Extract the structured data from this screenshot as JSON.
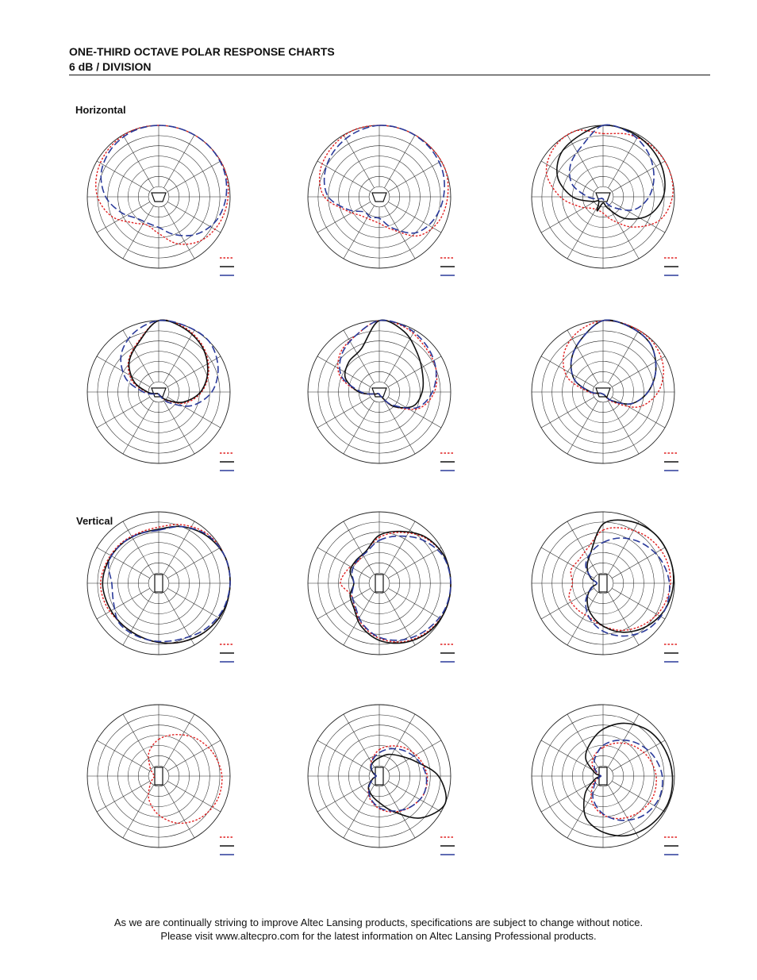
{
  "header": {
    "title": "ONE-THIRD OCTAVE POLAR RESPONSE CHARTS",
    "subtitle": "6 dB / DIVISION"
  },
  "sections": {
    "horizontal": "Horizontal",
    "vertical": "Vertical"
  },
  "legend_colors": {
    "red": "#e02020",
    "black": "#111111",
    "blue": "#2a3a9a"
  },
  "chart_data": [
    {
      "type": "polar",
      "plane": "horizontal",
      "icon": "horn-icon",
      "red": [
        7,
        7,
        7,
        7,
        6.8,
        6.5,
        6,
        5,
        3.6,
        3,
        3.6,
        5,
        6,
        6.5,
        6.8,
        7,
        7
      ],
      "black": [],
      "blue": [
        7,
        7,
        7,
        6.9,
        6.6,
        6.1,
        5.2,
        4,
        3,
        2.8,
        3,
        4,
        5.2,
        6.1,
        6.6,
        6.9,
        7
      ]
    },
    {
      "type": "polar",
      "plane": "horizontal",
      "icon": "horn-icon",
      "red": [
        7,
        7,
        7,
        7,
        6.7,
        6.3,
        5.4,
        3.5,
        2.6,
        2.4,
        2.6,
        3.5,
        5.4,
        6.3,
        6.7,
        7,
        7
      ],
      "black": [],
      "blue": [
        7,
        7,
        6.9,
        6.7,
        6.3,
        5.8,
        5,
        3.3,
        2.1,
        2.2,
        2.1,
        3.3,
        5,
        5.8,
        6.3,
        6.7,
        6.9
      ]
    },
    {
      "type": "polar",
      "plane": "horizontal",
      "icon": "horn-icon",
      "red": [
        6.2,
        6.6,
        6.9,
        7,
        6.8,
        6,
        4.2,
        2.5,
        1.6,
        1.4,
        1.6,
        2.5,
        4.2,
        6,
        6.8,
        7,
        6.9
      ],
      "black": [
        7,
        6.9,
        6.7,
        6.4,
        5.9,
        4.8,
        3,
        1.2,
        0.6,
        1.5,
        0.6,
        1.2,
        3,
        4.8,
        5.9,
        6.4,
        6.7
      ],
      "blue": [
        7,
        6.8,
        6.2,
        5.4,
        4.5,
        3.3,
        1.5,
        0.5,
        0.2,
        0.2,
        0.2,
        0.5,
        1.5,
        3.3,
        4.5,
        5.4,
        6.2
      ]
    },
    {
      "type": "polar",
      "plane": "horizontal",
      "icon": "horn-icon",
      "red": [
        7,
        6.8,
        6.2,
        5.3,
        4.2,
        2.8,
        1.2,
        0.4,
        0.2,
        0.2,
        0.2,
        0.4,
        1.2,
        2.8,
        4.2,
        5.3,
        6.2
      ],
      "black": [
        7,
        6.7,
        6.1,
        5.2,
        4.1,
        2.6,
        1.1,
        0.4,
        0.2,
        0.2,
        0.2,
        0.4,
        1.1,
        2.6,
        4.1,
        5.2,
        6.1
      ],
      "blue": [
        7,
        7,
        7,
        6.3,
        5.2,
        3.5,
        1.5,
        0.5,
        0.2,
        0.2,
        0.2,
        0.5,
        1.5,
        3.5,
        5.2,
        6.3,
        7
      ]
    },
    {
      "type": "polar",
      "plane": "horizontal",
      "icon": "horn-icon",
      "red": [
        7,
        6.8,
        6.3,
        6,
        5.4,
        4.2,
        2,
        0.5,
        0.2,
        0.2,
        0.2,
        0.5,
        2,
        4.2,
        5.4,
        6,
        6.3
      ],
      "black": [
        7,
        6.4,
        5.3,
        4.6,
        4.2,
        3.6,
        2,
        0.5,
        0.2,
        0.2,
        0.2,
        0.5,
        2,
        3.6,
        4.2,
        4.6,
        5.3
      ],
      "blue": [
        7,
        6.9,
        6.5,
        6,
        5.2,
        4,
        1.8,
        0.5,
        0.2,
        0.2,
        0.2,
        0.5,
        1.8,
        4,
        5.2,
        6,
        6.5
      ]
    },
    {
      "type": "polar",
      "plane": "horizontal",
      "icon": "horn-icon",
      "red": [
        7,
        7,
        6.9,
        6.4,
        5.4,
        3.8,
        1.4,
        0.3,
        0.2,
        0.2,
        0.2,
        0.3,
        1.4,
        3.8,
        5.4,
        6.4,
        6.9
      ],
      "black": [
        7,
        6.9,
        6.6,
        5.6,
        4.4,
        3,
        1.2,
        0.3,
        0.2,
        0.2,
        0.2,
        0.3,
        1.2,
        3,
        4.4,
        5.6,
        6.6
      ],
      "blue": [
        7,
        6.9,
        6.6,
        5.6,
        4.4,
        3,
        1.2,
        0.3,
        0.2,
        0.2,
        0.2,
        0.3,
        1.2,
        3,
        4.4,
        5.6,
        6.6
      ]
    },
    {
      "type": "polar",
      "plane": "vertical",
      "icon": "cabinet-icon",
      "red": [
        5.5,
        6.2,
        6.8,
        7,
        7,
        6.9,
        6.6,
        6.2,
        5.8,
        5.5,
        5.4,
        5.6,
        5.7,
        5.5,
        5.4,
        5.3,
        5.3
      ],
      "black": [
        5.3,
        6,
        6.6,
        7,
        7,
        6.9,
        6.6,
        6.2,
        5.8,
        5.5,
        5.4,
        5.4,
        5.5,
        5.4,
        5.3,
        5.2,
        5.2
      ],
      "blue": [
        5.2,
        6,
        6.7,
        7,
        7,
        6.8,
        6.4,
        5.9,
        5.7,
        5.6,
        5.5,
        4.8,
        4.6,
        5.3,
        5.3,
        5.2,
        5
      ]
    },
    {
      "type": "polar",
      "plane": "vertical",
      "icon": "cabinet-icon",
      "red": [
        4.5,
        5.4,
        6.3,
        6.9,
        7,
        7,
        6.7,
        6.2,
        5.4,
        4.4,
        3.4,
        3,
        3.8,
        3.4,
        3,
        3.4,
        3.8
      ],
      "black": [
        4.7,
        5.5,
        6.4,
        6.9,
        7,
        7,
        6.8,
        6.3,
        5.6,
        4.6,
        3.5,
        3.1,
        2.5,
        3.1,
        3.2,
        3.4,
        3.8
      ],
      "blue": [
        4.2,
        5,
        6,
        6.8,
        7,
        6.9,
        6.5,
        6,
        5.3,
        4.3,
        3.3,
        2.9,
        2.5,
        2.9,
        3.1,
        3.3,
        3.8
      ]
    },
    {
      "type": "polar",
      "plane": "vertical",
      "icon": "cabinet-icon",
      "red": [
        5.2,
        5.8,
        6.3,
        6.6,
        6.6,
        6.3,
        5.7,
        5,
        4.2,
        3.6,
        3.6,
        3.6,
        3,
        3.4,
        3.3,
        3.8,
        4.6
      ],
      "black": [
        5.8,
        6.6,
        7,
        7,
        6.9,
        6.6,
        6,
        5.2,
        4.2,
        3.2,
        2.2,
        1.3,
        0.6,
        1.3,
        2.2,
        3.2,
        4.4
      ],
      "blue": [
        4,
        4.8,
        5.5,
        6.1,
        6.5,
        6.6,
        6.3,
        5.6,
        4.7,
        3.6,
        2.4,
        1.2,
        0.6,
        1.2,
        2.4,
        3.2,
        3.8
      ]
    },
    {
      "type": "polar",
      "plane": "vertical",
      "icon": "cabinet-icon",
      "red": [
        3.6,
        4.4,
        5.2,
        5.8,
        6.2,
        6.2,
        5.8,
        5,
        3.8,
        2.5,
        1.2,
        0.6,
        0.4,
        0.6,
        1.2,
        2.5,
        3
      ]
    },
    {
      "type": "polar",
      "plane": "vertical",
      "icon": "cabinet-icon",
      "red": [
        2.6,
        3.2,
        3.8,
        4.3,
        4.7,
        4.7,
        4.3,
        3.8,
        3.2,
        2.4,
        1.5,
        0.7,
        0.3,
        0.6,
        1.2,
        1.8,
        2.2
      ],
      "black": [
        1.8,
        2.3,
        2.8,
        3.8,
        5.8,
        7,
        5.8,
        3.8,
        2.6,
        2,
        1.5,
        0.7,
        0.3,
        0.6,
        1.2,
        1.5,
        1.6
      ],
      "blue": [
        2.3,
        2.9,
        3.5,
        4.1,
        4.6,
        4.7,
        4.3,
        3.7,
        3.1,
        2.3,
        1.4,
        0.6,
        0.3,
        0.5,
        1.1,
        1.7,
        2
      ]
    },
    {
      "type": "polar",
      "plane": "vertical",
      "icon": "cabinet-icon",
      "red": [
        2.8,
        3.5,
        4.2,
        4.8,
        5.2,
        5.3,
        5,
        4.5,
        3.8,
        2.8,
        1.5,
        0.6,
        0.2,
        0.6,
        1.5,
        2.2,
        2.6
      ],
      "black": [
        4.6,
        5.6,
        6.3,
        6.6,
        6.8,
        6.9,
        6.7,
        6.3,
        5.5,
        4.4,
        2.5,
        0.9,
        0.3,
        0.9,
        2.4,
        3.4,
        4
      ],
      "blue": [
        3,
        3.8,
        4.6,
        5.3,
        5.8,
        5.9,
        5.5,
        4.7,
        3.7,
        2.5,
        1.2,
        0.5,
        0.2,
        0.5,
        1.2,
        2,
        2.6
      ]
    }
  ],
  "footer": {
    "line1": "As we are continually striving to improve Altec Lansing products, specifications are subject to change without notice.",
    "line2": "Please visit www.altecpro.com for the latest information on Altec Lansing Professional products."
  }
}
